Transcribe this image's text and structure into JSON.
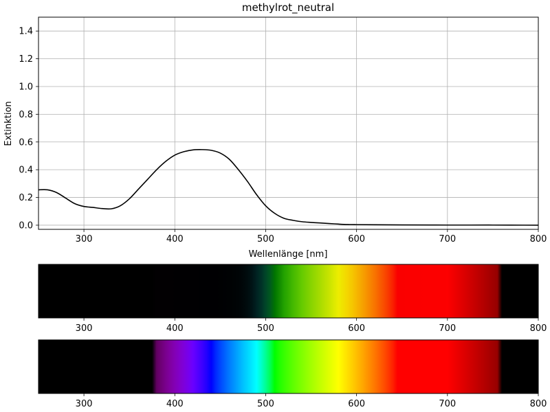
{
  "chart_data": [
    {
      "type": "line",
      "title": "methylrot_neutral",
      "xlabel": "Wellenlänge [nm]",
      "ylabel": "Extinktion",
      "xlim": [
        250,
        800
      ],
      "ylim": [
        -0.03,
        1.5
      ],
      "grid": true,
      "xticks": [
        300,
        400,
        500,
        600,
        700,
        800
      ],
      "yticks": [
        0.0,
        0.2,
        0.4,
        0.6,
        0.8,
        1.0,
        1.2,
        1.4
      ],
      "line_color": "#000000",
      "series": [
        {
          "x": [
            250,
            260,
            270,
            280,
            290,
            300,
            310,
            320,
            330,
            340,
            350,
            360,
            370,
            380,
            390,
            400,
            410,
            420,
            430,
            440,
            450,
            460,
            470,
            480,
            490,
            500,
            510,
            520,
            530,
            540,
            550,
            560,
            570,
            580,
            590,
            600,
            620,
            650,
            700,
            750,
            800
          ],
          "y": [
            0.255,
            0.255,
            0.235,
            0.195,
            0.155,
            0.135,
            0.128,
            0.12,
            0.118,
            0.14,
            0.19,
            0.26,
            0.33,
            0.4,
            0.46,
            0.505,
            0.53,
            0.543,
            0.545,
            0.54,
            0.52,
            0.475,
            0.4,
            0.315,
            0.22,
            0.14,
            0.085,
            0.05,
            0.035,
            0.025,
            0.02,
            0.016,
            0.012,
            0.008,
            0.005,
            0.004,
            0.003,
            0.002,
            0.001,
            0.001,
            0.0
          ]
        }
      ]
    },
    {
      "type": "heatmap",
      "description_role": "transmitted spectrum band",
      "xlim": [
        250,
        800
      ],
      "xticks": [
        300,
        400,
        500,
        600,
        700,
        800
      ]
    },
    {
      "type": "heatmap",
      "description_role": "reference visible spectrum band",
      "xlim": [
        250,
        800
      ],
      "xticks": [
        300,
        400,
        500,
        600,
        700,
        800
      ]
    }
  ]
}
